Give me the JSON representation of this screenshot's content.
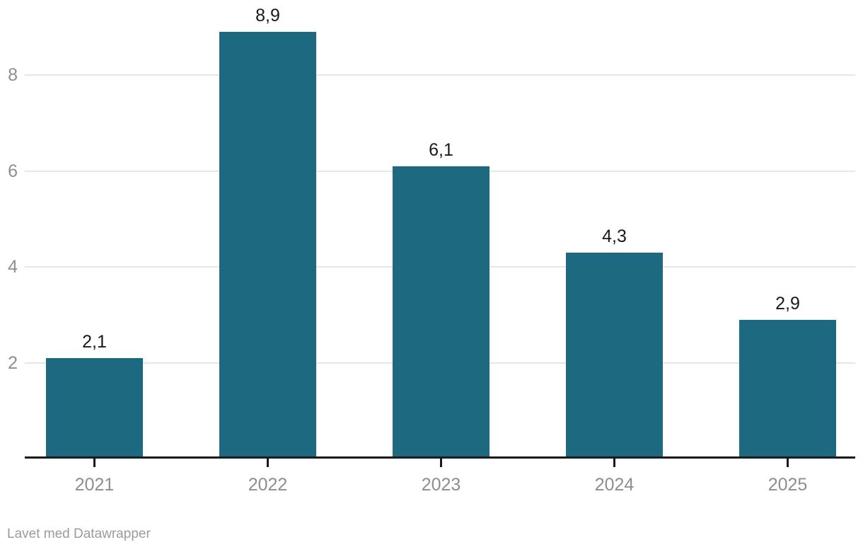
{
  "chart_data": {
    "type": "bar",
    "categories": [
      "2021",
      "2022",
      "2023",
      "2024",
      "2025"
    ],
    "values": [
      2.1,
      8.9,
      6.1,
      4.3,
      2.9
    ],
    "value_labels": [
      "2,1",
      "8,9",
      "6,1",
      "4,3",
      "2,9"
    ],
    "title": "",
    "xlabel": "",
    "ylabel": "",
    "ylim": [
      0,
      9.6
    ],
    "yticks": [
      2,
      4,
      6,
      8
    ],
    "ytick_labels": [
      "2",
      "4",
      "6",
      "8"
    ],
    "grid": true,
    "legend": "none",
    "decimal_separator": ","
  },
  "footer": {
    "attribution": "Lavet med Datawrapper"
  },
  "colors": {
    "background": "#ffffff",
    "bar": "#1d6a80",
    "value_label": "#1a1a1a",
    "axis_tick_label": "#8e8e8e",
    "gridline": "#e6e6e6",
    "axis_line": "#1a1a1a",
    "footer_text": "#9b9b9b"
  }
}
